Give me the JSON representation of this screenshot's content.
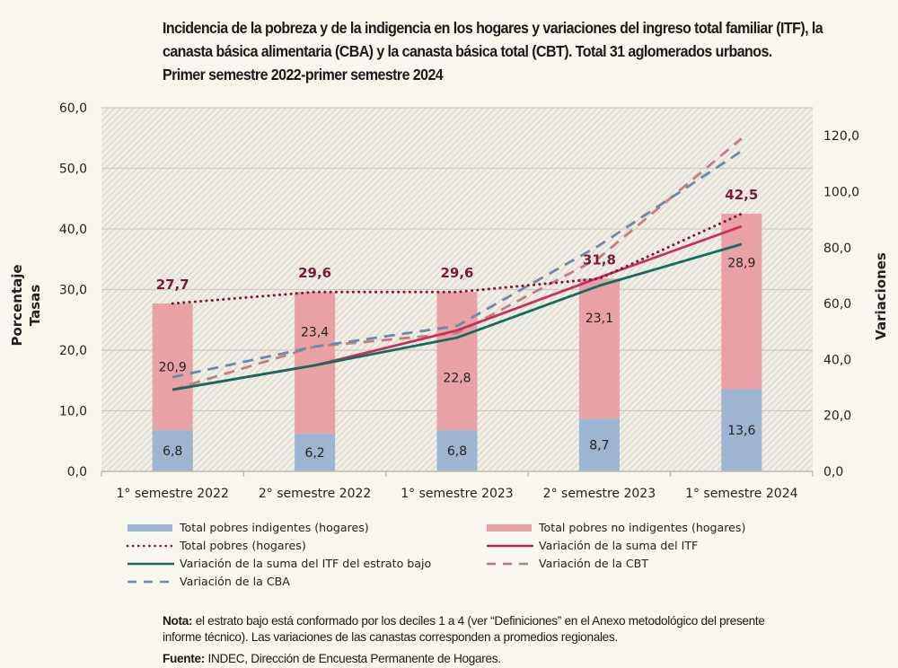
{
  "title_lines": [
    "Incidencia de la pobreza y de la indigencia en los hogares y variaciones del ingreso total familiar (ITF), la",
    "canasta básica alimentaria (CBA) y la canasta básica total (CBT). Total 31 aglomerados urbanos.",
    "Primer semestre 2022-primer semestre 2024"
  ],
  "notes": {
    "nota_label": "Nota:",
    "nota_text_1": " el estrato bajo está conformado por los deciles 1 a 4 (ver “Definiciones” en el Anexo metodológico del presente",
    "nota_text_2": "informe técnico). Las variaciones de las canastas corresponden a promedios regionales.",
    "fuente_label": "Fuente:",
    "fuente_text": " INDEC, Dirección de Encuesta Permanente de Hogares."
  },
  "colors": {
    "indigentes": "#9DB5D0",
    "no_indigentes": "#E8A1A6",
    "total_pobres": "#7A1A3A",
    "itf": "#C8305E",
    "itf_bajo": "#146B5E",
    "cbt": "#C08080",
    "cba": "#6E88A8",
    "plot_bg": "#F1EEE6",
    "hatch": "#D6D2C9",
    "grid": "#CFCBC2"
  },
  "chart_data": {
    "type": "bar",
    "stacked": true,
    "title": "Incidencia de la pobreza y de la indigencia en los hogares y variaciones del ingreso total familiar (ITF), la canasta básica alimentaria (CBA) y la canasta básica total (CBT). Total 31 aglomerados urbanos. Primer semestre 2022-primer semestre 2024",
    "categories": [
      "1° semestre 2022",
      "2° semestre 2022",
      "1° semestre 2023",
      "2° semestre 2023",
      "1° semestre 2024"
    ],
    "ylabel_left": [
      "Porcentaje",
      "Tasas"
    ],
    "ylabel_right": "Variaciones",
    "ylim_left": [
      0,
      60
    ],
    "yticks_left": [
      "0,0",
      "10,0",
      "20,0",
      "30,0",
      "40,0",
      "50,0",
      "60,0"
    ],
    "ylim_right": [
      0,
      130
    ],
    "yticks_right": [
      "0,0",
      "20,0",
      "40,0",
      "60,0",
      "80,0",
      "100,0",
      "120,0"
    ],
    "grid": true,
    "legend_position": "bottom",
    "bar_series": [
      {
        "name": "Total pobres indigentes (hogares)",
        "axis": "left",
        "values": [
          6.8,
          6.2,
          6.8,
          8.7,
          13.6
        ],
        "labels": [
          "6,8",
          "6,2",
          "6,8",
          "8,7",
          "13,6"
        ]
      },
      {
        "name": "Total pobres no indigentes (hogares)",
        "axis": "left",
        "values": [
          20.9,
          23.4,
          22.8,
          23.1,
          28.9
        ],
        "labels": [
          "20,9",
          "23,4",
          "22,8",
          "23,1",
          "28,9"
        ]
      }
    ],
    "line_series": [
      {
        "name": "Total pobres (hogares)",
        "axis": "left",
        "style": "dotted",
        "values": [
          27.7,
          29.6,
          29.6,
          31.8,
          42.5
        ],
        "labels": [
          "27,7",
          "29,6",
          "29,6",
          "31,8",
          "42,5"
        ]
      },
      {
        "name": "Variación de la suma del ITF",
        "axis": "right",
        "style": "solid",
        "values": [
          29.2,
          37.9,
          50.4,
          69.3,
          87.6
        ]
      },
      {
        "name": "Variación de la suma del ITF del estrato bajo",
        "axis": "right",
        "style": "solid",
        "values": [
          29.2,
          37.9,
          47.8,
          66.4,
          81.2
        ]
      },
      {
        "name": "Variación de la CBT",
        "axis": "right",
        "style": "dashed",
        "values": [
          29.2,
          44.6,
          49.4,
          76.4,
          119.0
        ]
      },
      {
        "name": "Variación de la CBA",
        "axis": "right",
        "style": "dashed",
        "values": [
          33.7,
          44.6,
          52.0,
          80.8,
          114.5
        ]
      }
    ]
  },
  "legend": [
    {
      "key": "indigentes",
      "label": "Total pobres indigentes (hogares)",
      "kind": "box"
    },
    {
      "key": "no_indigentes",
      "label": "Total pobres no indigentes (hogares)",
      "kind": "box"
    },
    {
      "key": "total_pobres",
      "label": "Total pobres (hogares)",
      "kind": "dotted"
    },
    {
      "key": "itf",
      "label": "Variación de la suma del ITF",
      "kind": "solid"
    },
    {
      "key": "itf_bajo",
      "label": "Variación de la suma del ITF del estrato bajo",
      "kind": "solid"
    },
    {
      "key": "cbt",
      "label": "Variación de la CBT",
      "kind": "dashed"
    },
    {
      "key": "cba",
      "label": "Variación de la CBA",
      "kind": "dashed"
    }
  ]
}
